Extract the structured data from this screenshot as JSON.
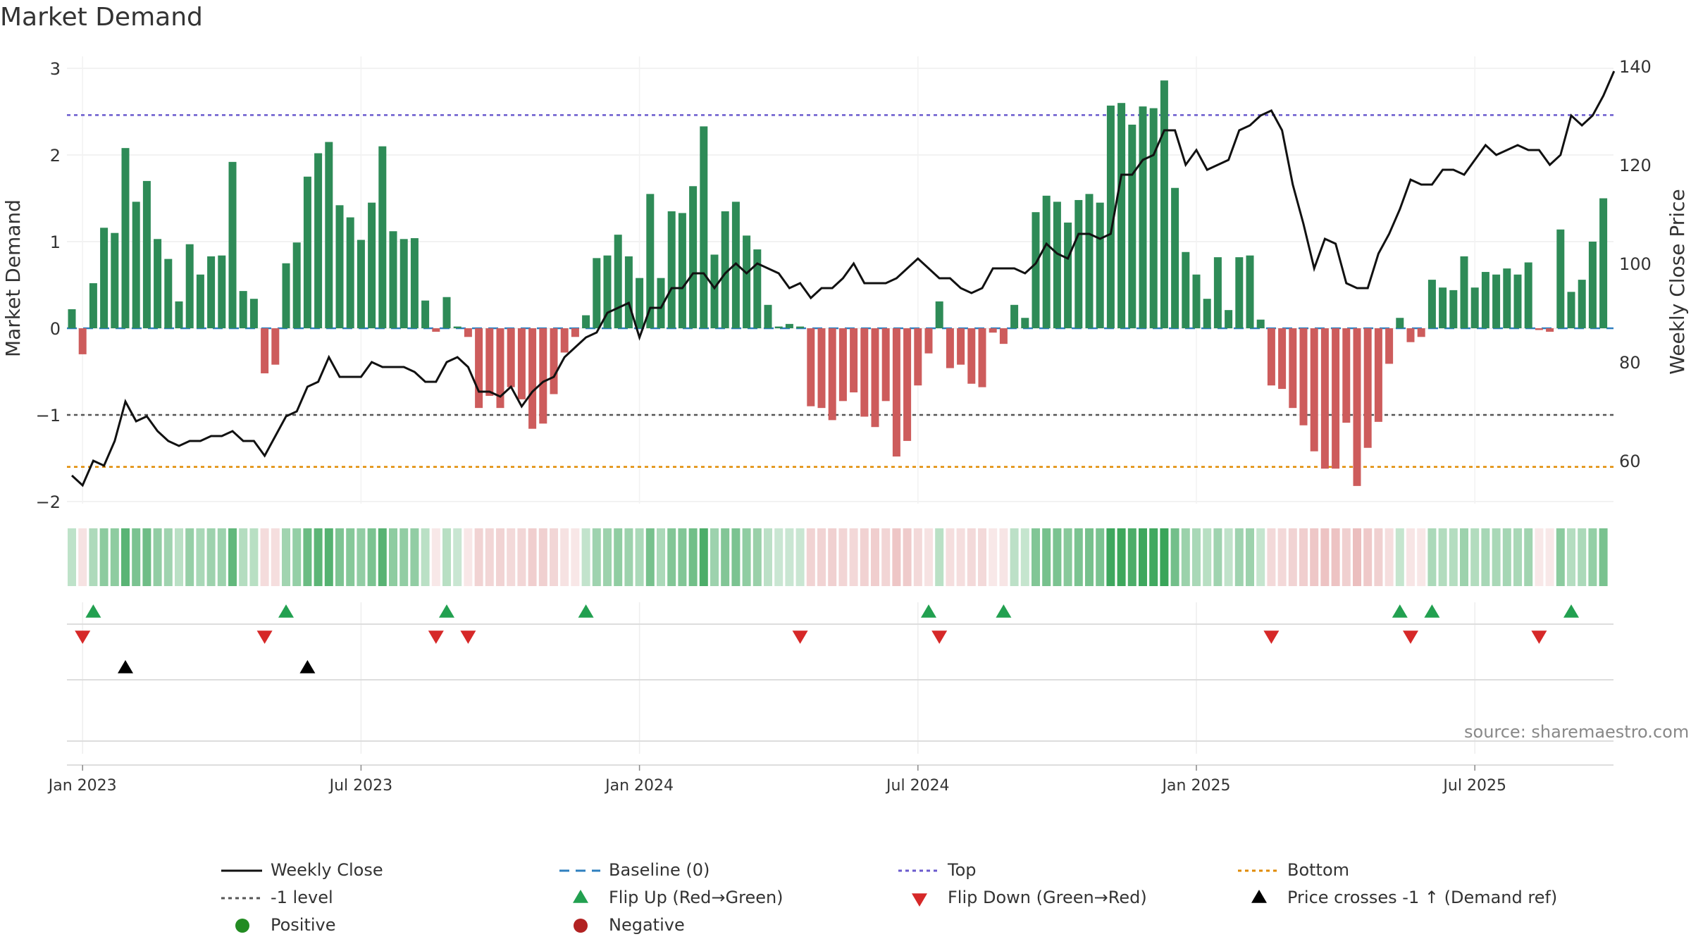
{
  "chart_data": {
    "type": "bar",
    "title": "Market Demand",
    "ylabel_left": "Market Demand",
    "ylabel_right": "Weekly Close Price",
    "ylim_left": [
      -2.2,
      3.2
    ],
    "ylim_right": [
      48,
      142
    ],
    "yticks_left": [
      "3",
      "2",
      "1",
      "0",
      "−1",
      "−2"
    ],
    "yticks_left_values": [
      3,
      2,
      1,
      0,
      -1,
      -2
    ],
    "yticks_right": [
      "140",
      "120",
      "100",
      "80",
      "60"
    ],
    "yticks_right_values": [
      140,
      120,
      100,
      80,
      60
    ],
    "xticks": [
      "Jan 2023",
      "Jul 2023",
      "Jan 2024",
      "Jul 2024",
      "Jan 2025",
      "Jul 2025"
    ],
    "xticks_week_index": [
      1,
      27,
      53,
      79,
      105,
      131
    ],
    "reference_lines": {
      "top": 2.46,
      "minus_one": -1.0,
      "bottom": -1.6
    },
    "demand": [
      0.22,
      -0.3,
      0.52,
      1.16,
      1.1,
      2.08,
      1.46,
      1.7,
      1.03,
      0.8,
      0.31,
      0.97,
      0.62,
      0.83,
      0.84,
      1.92,
      0.43,
      0.34,
      -0.52,
      -0.42,
      0.75,
      0.99,
      1.75,
      2.02,
      2.15,
      1.42,
      1.28,
      1.02,
      1.45,
      2.1,
      1.12,
      1.03,
      1.04,
      0.32,
      -0.04,
      0.36,
      0.02,
      -0.1,
      -0.92,
      -0.78,
      -0.92,
      -0.68,
      -0.82,
      -1.16,
      -1.1,
      -0.76,
      -0.28,
      -0.1,
      0.15,
      0.81,
      0.84,
      1.08,
      0.83,
      0.58,
      1.55,
      0.58,
      1.35,
      1.33,
      1.64,
      2.33,
      0.85,
      1.35,
      1.46,
      1.07,
      0.91,
      0.27,
      0.02,
      0.05,
      0.02,
      -0.9,
      -0.92,
      -1.06,
      -0.84,
      -0.74,
      -1.02,
      -1.14,
      -0.84,
      -1.48,
      -1.3,
      -0.66,
      -0.29,
      0.31,
      -0.46,
      -0.42,
      -0.64,
      -0.68,
      -0.05,
      -0.18,
      0.27,
      0.12,
      1.34,
      1.53,
      1.46,
      1.22,
      1.48,
      1.55,
      1.45,
      2.57,
      2.6,
      2.35,
      2.56,
      2.54,
      2.86,
      1.62,
      0.88,
      0.62,
      0.34,
      0.82,
      0.21,
      0.82,
      0.84,
      0.1,
      -0.66,
      -0.7,
      -0.92,
      -1.12,
      -1.42,
      -1.62,
      -1.62,
      -1.09,
      -1.82,
      -1.38,
      -1.08,
      -0.41,
      0.12,
      -0.16,
      -0.1,
      0.56,
      0.47,
      0.44,
      0.83,
      0.47,
      0.65,
      0.62,
      0.69,
      0.62,
      0.76,
      -0.02,
      -0.04,
      1.14,
      0.42,
      0.56,
      1.0,
      1.5
    ],
    "weekly_close": [
      57,
      55,
      60,
      59,
      64,
      72,
      68,
      69,
      66,
      64,
      63,
      64,
      64,
      65,
      65,
      66,
      64,
      64,
      61,
      65,
      69,
      70,
      75,
      76,
      81,
      77,
      77,
      77,
      80,
      79,
      79,
      79,
      78,
      76,
      76,
      80,
      81,
      79,
      74,
      74,
      73,
      75,
      71,
      74,
      76,
      77,
      81,
      83,
      85,
      86,
      90,
      91,
      92,
      85,
      91,
      91,
      95,
      95,
      98,
      98,
      95,
      98,
      100,
      98,
      100,
      99,
      98,
      95,
      96,
      93,
      95,
      95,
      97,
      100,
      96,
      96,
      96,
      97,
      99,
      101,
      99,
      97,
      97,
      95,
      94,
      95,
      99,
      99,
      99,
      98,
      100,
      104,
      102,
      101,
      106,
      106,
      105,
      106,
      118,
      118,
      121,
      122,
      127,
      127,
      120,
      123,
      119,
      120,
      121,
      127,
      128,
      130,
      131,
      127,
      116,
      108,
      99,
      105,
      104,
      96,
      95,
      95,
      102,
      106,
      111,
      117,
      116,
      116,
      119,
      119,
      118,
      121,
      124,
      122,
      123,
      124,
      123,
      123,
      120,
      122,
      130,
      128,
      130,
      134,
      139
    ],
    "heat_strip": "weekly demand intensity strip (green = positive, red = negative)",
    "flip_up_weeks": [
      2,
      20,
      35,
      48,
      80,
      87,
      124,
      127,
      140
    ],
    "flip_down_weeks": [
      1,
      18,
      34,
      37,
      68,
      81,
      112,
      125,
      137
    ],
    "price_cross_weeks": [
      5,
      22
    ],
    "source": "source: sharemaestro.com",
    "legend": [
      {
        "key": "weekly_close",
        "label": "Weekly Close"
      },
      {
        "key": "baseline",
        "label": "Baseline (0)"
      },
      {
        "key": "top",
        "label": "Top"
      },
      {
        "key": "bottom",
        "label": "Bottom"
      },
      {
        "key": "minus_one",
        "label": "-1 level"
      },
      {
        "key": "flip_up",
        "label": "Flip Up (Red→Green)"
      },
      {
        "key": "flip_down",
        "label": "Flip Down (Green→Red)"
      },
      {
        "key": "price_cross",
        "label": "Price crosses -1 ↑ (Demand ref)"
      },
      {
        "key": "positive",
        "label": "Positive"
      },
      {
        "key": "negative",
        "label": "Negative"
      }
    ],
    "colors": {
      "positive_bar": "#2e8b57",
      "negative_bar": "#cd5c5c",
      "weekly_close": "#111111",
      "baseline": "#2f7fbf",
      "top": "#6a5acd",
      "minus_one": "#555555",
      "bottom": "#e08a00",
      "flip_up": "#22a050",
      "flip_down": "#d62828",
      "price_cross": "#000000",
      "positive_dot": "#228b22",
      "negative_dot": "#b22222"
    }
  }
}
